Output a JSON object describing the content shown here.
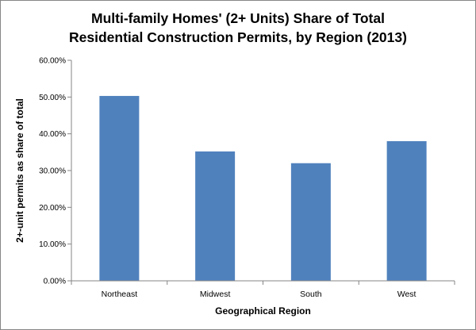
{
  "chart_data": {
    "type": "bar",
    "title": [
      "Multi-family Homes' (2+ Units) Share of Total",
      "Residential Construction  Permits, by Region (2013)"
    ],
    "xlabel": "Geographical Region",
    "ylabel": "2+-unit permits as share of total",
    "categories": [
      "Northeast",
      "Midwest",
      "South",
      "West"
    ],
    "values": [
      50.3,
      35.2,
      32.0,
      38.0
    ],
    "ylim": [
      0,
      60
    ],
    "yticks": [
      "0.00%",
      "10.00%",
      "20.00%",
      "30.00%",
      "40.00%",
      "50.00%",
      "60.00%"
    ],
    "grid": false,
    "legend": "none",
    "colors": {
      "bar": "#4F81BD",
      "axis": "#868686"
    }
  }
}
